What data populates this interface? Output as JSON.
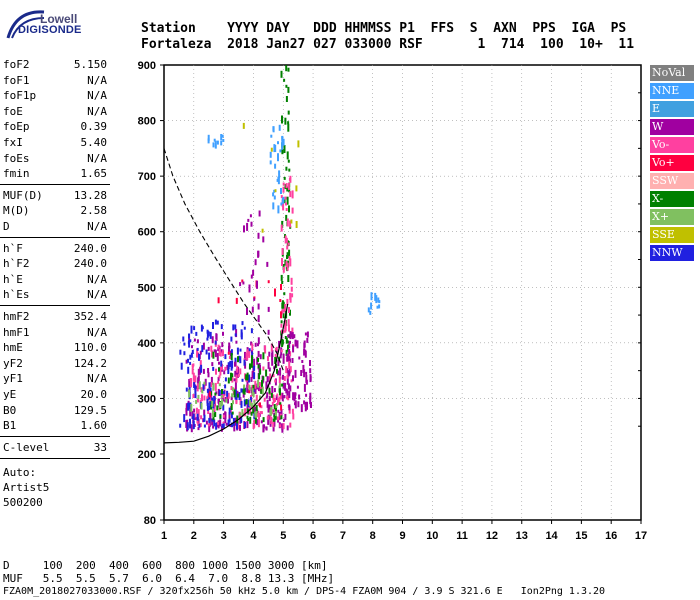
{
  "logo": {
    "line1": "Lowell",
    "line2": "DIGISONDE"
  },
  "header": {
    "line1": "Station    YYYY DAY   DDD HHMMSS P1  FFS  S  AXN  PPS  IGA  PS",
    "line2": "Fortaleza  2018 Jan27 027 033000 RSF       1  714  100  10+  11"
  },
  "params": [
    {
      "name": "foF2",
      "value": "5.150"
    },
    {
      "name": "foF1",
      "value": "N/A"
    },
    {
      "name": "foF1p",
      "value": "N/A"
    },
    {
      "name": "foE",
      "value": "N/A"
    },
    {
      "name": "foEp",
      "value": "0.39"
    },
    {
      "name": "fxI",
      "value": "5.40"
    },
    {
      "name": "foEs",
      "value": "N/A"
    },
    {
      "name": "fmin",
      "value": "1.65"
    },
    {
      "name": "MUF(D)",
      "value": "13.28"
    },
    {
      "name": "M(D)",
      "value": "2.58"
    },
    {
      "name": "D",
      "value": "N/A"
    },
    {
      "name": "h`F",
      "value": "240.0"
    },
    {
      "name": "h`F2",
      "value": "240.0"
    },
    {
      "name": "h`E",
      "value": "N/A"
    },
    {
      "name": "h`Es",
      "value": "N/A"
    },
    {
      "name": "hmF2",
      "value": "352.4"
    },
    {
      "name": "hmF1",
      "value": "N/A"
    },
    {
      "name": "hmE",
      "value": "110.0"
    },
    {
      "name": "yF2",
      "value": "124.2"
    },
    {
      "name": "yF1",
      "value": "N/A"
    },
    {
      "name": "yE",
      "value": "20.0"
    },
    {
      "name": "B0",
      "value": "129.5"
    },
    {
      "name": "B1",
      "value": "1.60"
    },
    {
      "name": "C-level",
      "value": "33"
    }
  ],
  "auto": [
    "Auto:",
    "Artist5",
    "500200"
  ],
  "legend": [
    {
      "label": "NoVal",
      "color": "#808080"
    },
    {
      "label": "NNE",
      "color": "#40a0ff"
    },
    {
      "label": "E",
      "color": "#40a0e0"
    },
    {
      "label": "W",
      "color": "#a000a0"
    },
    {
      "label": "Vo-",
      "color": "#ff40a0"
    },
    {
      "label": "Vo+",
      "color": "#ff0040"
    },
    {
      "label": "SSW",
      "color": "#ffb0b0"
    },
    {
      "label": "X-",
      "color": "#008000"
    },
    {
      "label": "X+",
      "color": "#80c060"
    },
    {
      "label": "SSE",
      "color": "#c0c000"
    },
    {
      "label": "NNW",
      "color": "#2020e0"
    }
  ],
  "muf_table": {
    "d_row": "D     100  200  400  600  800 1000 1500 3000 [km]",
    "muf_row": "MUF   5.5  5.5  5.7  6.0  6.4  7.0  8.8 13.3 [MHz]"
  },
  "footer": "FZA0M_2018027033000.RSF / 320fx256h 50 kHz 5.0 km / DPS-4 FZA0M 904 / 3.9 S 321.6 E   Ion2Png 1.3.20",
  "chart_data": {
    "type": "scatter",
    "x_ticks": [
      "1",
      "2",
      "3",
      "4",
      "5",
      "6",
      "7",
      "8",
      "9",
      "10",
      "11",
      "12",
      "13",
      "14",
      "15",
      "16",
      "17"
    ],
    "y_ticks": [
      "80",
      "200",
      "300",
      "400",
      "500",
      "600",
      "700",
      "800",
      "900"
    ],
    "xlim": [
      1,
      17
    ],
    "ylim": [
      80,
      900
    ],
    "grid": "dotted",
    "profile_curve": {
      "x": [
        1.0,
        1.5,
        2.0,
        2.5,
        3.0,
        3.5,
        4.0,
        4.4,
        4.7,
        4.9,
        5.05,
        5.15
      ],
      "y": [
        220,
        221,
        223,
        232,
        245,
        262,
        285,
        310,
        350,
        400,
        440,
        470
      ]
    },
    "profile_curve_upper": {
      "x": [
        1.0,
        1.3,
        1.7,
        2.2,
        2.7,
        3.2,
        3.7,
        4.1,
        4.5,
        4.8,
        5.0
      ],
      "y": [
        750,
        700,
        650,
        600,
        555,
        512,
        470,
        440,
        410,
        380,
        350
      ]
    },
    "echo_clusters": [
      {
        "series": "W",
        "x_range": [
          1.7,
          5.2
        ],
        "y_range": [
          245,
          420
        ],
        "count": 260
      },
      {
        "series": "Vo-",
        "x_range": [
          1.8,
          5.4
        ],
        "y_range": [
          250,
          400
        ],
        "count": 160
      },
      {
        "series": "NNW",
        "x_range": [
          1.5,
          4.0
        ],
        "y_range": [
          250,
          440
        ],
        "count": 140
      },
      {
        "series": "X-",
        "x_range": [
          2.5,
          5.0
        ],
        "y_range": [
          260,
          380
        ],
        "count": 70
      },
      {
        "series": "X-",
        "x_range": [
          4.9,
          5.2
        ],
        "y_range": [
          380,
          900
        ],
        "count": 70
      },
      {
        "series": "Vo-",
        "x_range": [
          4.9,
          5.3
        ],
        "y_range": [
          420,
          700
        ],
        "count": 50
      },
      {
        "series": "W",
        "x_range": [
          5.1,
          5.9
        ],
        "y_range": [
          280,
          420
        ],
        "count": 60
      },
      {
        "series": "NNE",
        "x_range": [
          4.5,
          5.0
        ],
        "y_range": [
          640,
          790
        ],
        "count": 30
      },
      {
        "series": "NNE",
        "x_range": [
          2.4,
          3.0
        ],
        "y_range": [
          750,
          775
        ],
        "count": 10
      },
      {
        "series": "NNE",
        "x_range": [
          7.7,
          8.2
        ],
        "y_range": [
          450,
          485
        ],
        "count": 10
      },
      {
        "series": "X+",
        "x_range": [
          1.7,
          5.0
        ],
        "y_range": [
          270,
          330
        ],
        "count": 40
      },
      {
        "series": "Vo+",
        "x_range": [
          2.5,
          5.0
        ],
        "y_range": [
          270,
          520
        ],
        "count": 15
      },
      {
        "series": "SSE",
        "x_range": [
          3.0,
          5.5
        ],
        "y_range": [
          580,
          800
        ],
        "count": 8
      },
      {
        "series": "W",
        "x_range": [
          3.5,
          4.5
        ],
        "y_range": [
          440,
          640
        ],
        "count": 25
      }
    ]
  }
}
